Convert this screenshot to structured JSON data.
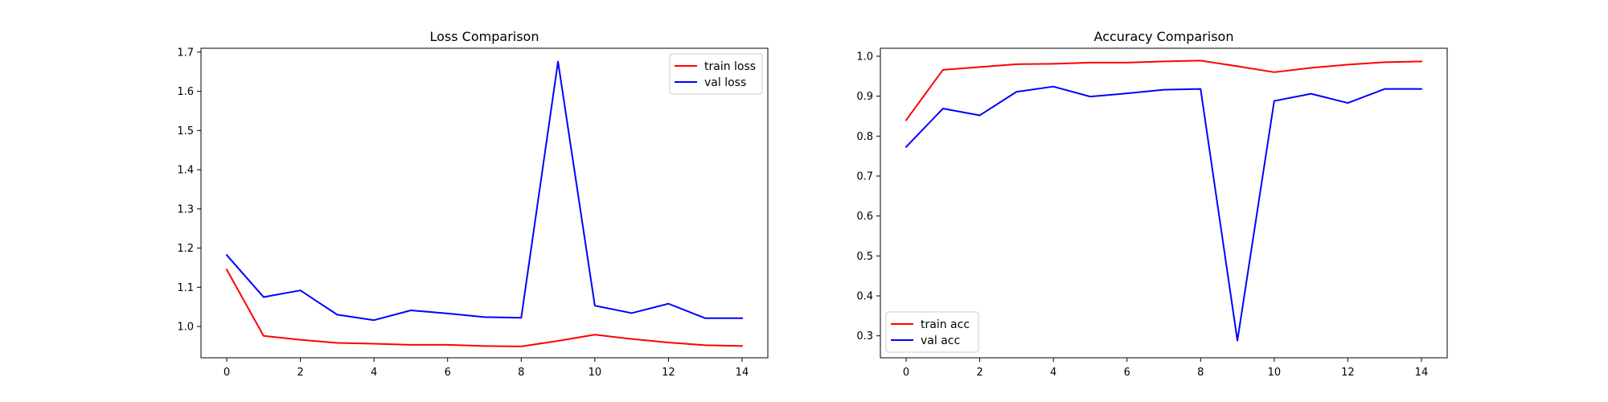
{
  "chart_data": [
    {
      "type": "line",
      "title": "Loss Comparison",
      "xlabel": "",
      "ylabel": "",
      "x": [
        0,
        1,
        2,
        3,
        4,
        5,
        6,
        7,
        8,
        9,
        10,
        11,
        12,
        13,
        14
      ],
      "xlim": [
        -0.7,
        14.7
      ],
      "ylim": [
        0.92,
        1.71
      ],
      "xticks": [
        0,
        2,
        4,
        6,
        8,
        10,
        12,
        14
      ],
      "yticks": [
        1.0,
        1.1,
        1.2,
        1.3,
        1.4,
        1.5,
        1.6,
        1.7
      ],
      "grid": false,
      "legend": "top-right",
      "series": [
        {
          "name": "train loss",
          "color": "#ff0000",
          "values": [
            1.145,
            0.976,
            0.966,
            0.958,
            0.956,
            0.953,
            0.953,
            0.95,
            0.949,
            0.963,
            0.979,
            0.968,
            0.959,
            0.952,
            0.95
          ]
        },
        {
          "name": "val loss",
          "color": "#0000ff",
          "values": [
            1.182,
            1.075,
            1.092,
            1.03,
            1.016,
            1.041,
            1.033,
            1.024,
            1.022,
            1.676,
            1.053,
            1.034,
            1.058,
            1.021,
            1.021
          ]
        }
      ]
    },
    {
      "type": "line",
      "title": "Accuracy Comparison",
      "xlabel": "",
      "ylabel": "",
      "x": [
        0,
        1,
        2,
        3,
        4,
        5,
        6,
        7,
        8,
        9,
        10,
        11,
        12,
        13,
        14
      ],
      "xlim": [
        -0.7,
        14.7
      ],
      "ylim": [
        0.245,
        1.02
      ],
      "xticks": [
        0,
        2,
        4,
        6,
        8,
        10,
        12,
        14
      ],
      "yticks": [
        0.3,
        0.4,
        0.5,
        0.6,
        0.7,
        0.8,
        0.9,
        1.0
      ],
      "grid": false,
      "legend": "bottom-left",
      "series": [
        {
          "name": "train acc",
          "color": "#ff0000",
          "values": [
            0.84,
            0.966,
            0.973,
            0.98,
            0.981,
            0.984,
            0.984,
            0.987,
            0.989,
            0.975,
            0.96,
            0.971,
            0.979,
            0.985,
            0.987
          ]
        },
        {
          "name": "val acc",
          "color": "#0000ff",
          "values": [
            0.773,
            0.869,
            0.852,
            0.911,
            0.924,
            0.899,
            0.907,
            0.916,
            0.918,
            0.288,
            0.888,
            0.906,
            0.883,
            0.918,
            0.918
          ]
        }
      ]
    }
  ]
}
